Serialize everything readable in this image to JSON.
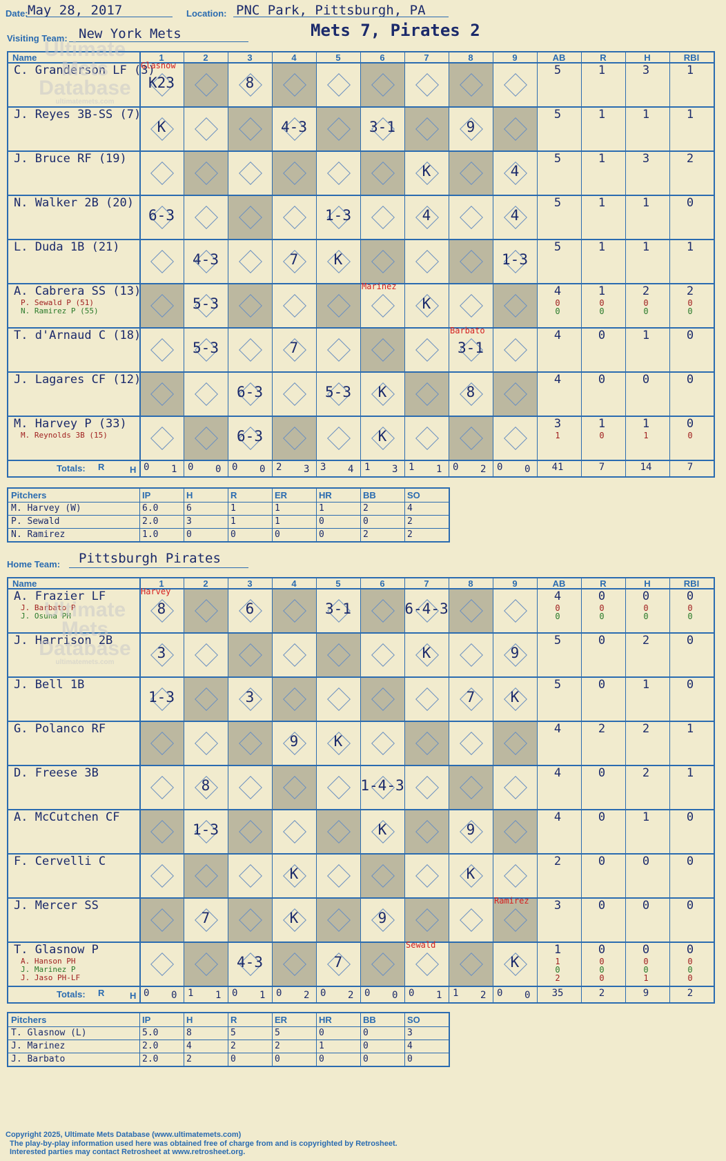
{
  "header": {
    "date_label": "Date:",
    "date": "May 28, 2017",
    "location_label": "Location:",
    "location": "PNC Park, Pittsburgh, PA",
    "visiting_label": "Visiting Team:",
    "visiting_team": "New York Mets",
    "score_title": "Mets 7, Pirates 2",
    "home_label": "Home Team:",
    "home_team": "Pittsburgh Pirates"
  },
  "columns": {
    "name": "Name",
    "innings": [
      "1",
      "2",
      "3",
      "4",
      "5",
      "6",
      "7",
      "8",
      "9"
    ],
    "stats": [
      "AB",
      "R",
      "H",
      "RBI"
    ],
    "totals_label": "Totals:",
    "r_label": "R",
    "h_label": "H"
  },
  "visitors": [
    {
      "name": "C. Granderson LF (3)",
      "subs": [],
      "stats": [
        "5",
        "1",
        "3",
        "1"
      ],
      "substats": []
    },
    {
      "name": "J. Reyes 3B-SS (7)",
      "subs": [],
      "stats": [
        "5",
        "1",
        "1",
        "1"
      ],
      "substats": []
    },
    {
      "name": "J. Bruce RF (19)",
      "subs": [],
      "stats": [
        "5",
        "1",
        "3",
        "2"
      ],
      "substats": []
    },
    {
      "name": "N. Walker 2B (20)",
      "subs": [],
      "stats": [
        "5",
        "1",
        "1",
        "0"
      ],
      "substats": []
    },
    {
      "name": "L. Duda 1B (21)",
      "subs": [],
      "stats": [
        "5",
        "1",
        "1",
        "1"
      ],
      "substats": []
    },
    {
      "name": "A. Cabrera SS (13)",
      "subs": [
        "P. Sewald P (51)",
        "N. Ramirez P (55)"
      ],
      "stats": [
        "4",
        "1",
        "2",
        "2"
      ],
      "substats": [
        [
          "0",
          "0",
          "0",
          "0"
        ],
        [
          "0",
          "0",
          "0",
          "0"
        ]
      ]
    },
    {
      "name": "T. d'Arnaud C (18)",
      "subs": [],
      "stats": [
        "4",
        "0",
        "1",
        "0"
      ],
      "substats": []
    },
    {
      "name": "J. Lagares CF (12)",
      "subs": [],
      "stats": [
        "4",
        "0",
        "0",
        "0"
      ],
      "substats": []
    },
    {
      "name": "M. Harvey P (33)",
      "subs": [
        "M. Reynolds 3B (15)"
      ],
      "stats": [
        "3",
        "1",
        "1",
        "0"
      ],
      "substats": [
        [
          "1",
          "0",
          "1",
          "0"
        ]
      ]
    }
  ],
  "visitors_plays": [
    [
      "K23",
      "",
      "8",
      "",
      "",
      "",
      "",
      "",
      ""
    ],
    [
      "K",
      "",
      "",
      "4-3",
      "",
      "3-1",
      "",
      "9",
      ""
    ],
    [
      "",
      "",
      "",
      "",
      "",
      "",
      "K",
      "",
      "4"
    ],
    [
      "6-3",
      "",
      "",
      "",
      "1-3",
      "",
      "4",
      "",
      "4"
    ],
    [
      "",
      "4-3",
      "",
      "7",
      "K",
      "",
      "",
      "",
      "1-3"
    ],
    [
      "",
      "5-3",
      "",
      "",
      "",
      "",
      "K",
      "",
      ""
    ],
    [
      "",
      "5-3",
      "",
      "7",
      "",
      "",
      "",
      "3-1",
      ""
    ],
    [
      "",
      "",
      "6-3",
      "",
      "5-3",
      "K",
      "",
      "8",
      ""
    ],
    [
      "",
      "",
      "6-3",
      "",
      "",
      "K",
      "",
      "",
      ""
    ]
  ],
  "visitors_notes": [
    {
      "text": "Glasnow",
      "row": 0,
      "col": 0
    },
    {
      "text": "Marinez",
      "row": 5,
      "col": 5
    },
    {
      "text": "Barbato",
      "row": 6,
      "col": 7
    }
  ],
  "visitors_totals": [
    [
      "0",
      "1"
    ],
    [
      "0",
      "0"
    ],
    [
      "0",
      "0"
    ],
    [
      "2",
      "3"
    ],
    [
      "3",
      "4"
    ],
    [
      "1",
      "3"
    ],
    [
      "1",
      "1"
    ],
    [
      "0",
      "2"
    ],
    [
      "0",
      "0"
    ]
  ],
  "visitors_stat_totals": [
    "41",
    "7",
    "14",
    "7"
  ],
  "visitors_pitchers": {
    "header": [
      "Pitchers",
      "IP",
      "H",
      "R",
      "ER",
      "HR",
      "BB",
      "SO"
    ],
    "rows": [
      [
        "M. Harvey (W)",
        "6.0",
        "6",
        "1",
        "1",
        "1",
        "2",
        "4"
      ],
      [
        "P. Sewald",
        "2.0",
        "3",
        "1",
        "1",
        "0",
        "0",
        "2"
      ],
      [
        "N. Ramirez",
        "1.0",
        "0",
        "0",
        "0",
        "0",
        "2",
        "2"
      ]
    ]
  },
  "home": [
    {
      "name": "A. Frazier LF",
      "subs": [
        "J. Barbato P",
        "J. Osuna PH"
      ],
      "stats": [
        "4",
        "0",
        "0",
        "0"
      ],
      "substats": [
        [
          "0",
          "0",
          "0",
          "0"
        ],
        [
          "0",
          "0",
          "0",
          "0"
        ]
      ]
    },
    {
      "name": "J. Harrison 2B",
      "subs": [],
      "stats": [
        "5",
        "0",
        "2",
        "0"
      ],
      "substats": []
    },
    {
      "name": "J. Bell 1B",
      "subs": [],
      "stats": [
        "5",
        "0",
        "1",
        "0"
      ],
      "substats": []
    },
    {
      "name": "G. Polanco RF",
      "subs": [],
      "stats": [
        "4",
        "2",
        "2",
        "1"
      ],
      "substats": []
    },
    {
      "name": "D. Freese 3B",
      "subs": [],
      "stats": [
        "4",
        "0",
        "2",
        "1"
      ],
      "substats": []
    },
    {
      "name": "A. McCutchen CF",
      "subs": [],
      "stats": [
        "4",
        "0",
        "1",
        "0"
      ],
      "substats": []
    },
    {
      "name": "F. Cervelli C",
      "subs": [],
      "stats": [
        "2",
        "0",
        "0",
        "0"
      ],
      "substats": []
    },
    {
      "name": "J. Mercer SS",
      "subs": [],
      "stats": [
        "3",
        "0",
        "0",
        "0"
      ],
      "substats": []
    },
    {
      "name": "T. Glasnow P",
      "subs": [
        "A. Hanson PH",
        "J. Marinez P",
        "J. Jaso PH-LF"
      ],
      "stats": [
        "1",
        "0",
        "0",
        "0"
      ],
      "substats": [
        [
          "1",
          "0",
          "0",
          "0"
        ],
        [
          "0",
          "0",
          "0",
          "0"
        ],
        [
          "2",
          "0",
          "1",
          "0"
        ]
      ]
    }
  ],
  "home_plays": [
    [
      "8",
      "",
      "6",
      "",
      "3-1",
      "",
      "6-4-3",
      "",
      ""
    ],
    [
      "3",
      "",
      "",
      "",
      "",
      "",
      "K",
      "",
      "9"
    ],
    [
      "1-3",
      "",
      "3",
      "",
      "",
      "",
      "",
      "7",
      "K"
    ],
    [
      "",
      "",
      "",
      "9",
      "K",
      "",
      "",
      "",
      ""
    ],
    [
      "",
      "8",
      "",
      "",
      "",
      "1-4-3",
      "",
      "",
      ""
    ],
    [
      "",
      "1-3",
      "",
      "",
      "",
      "K",
      "",
      "9",
      ""
    ],
    [
      "",
      "",
      "",
      "K",
      "",
      "",
      "",
      "K",
      ""
    ],
    [
      "",
      "7",
      "",
      "K",
      "",
      "9",
      "",
      "",
      ""
    ],
    [
      "",
      "",
      "4-3",
      "",
      "7",
      "",
      "",
      "",
      "K"
    ]
  ],
  "home_notes": [
    {
      "text": "Harvey",
      "row": 0,
      "col": 0
    },
    {
      "text": "Ramirez",
      "row": 7,
      "col": 8
    },
    {
      "text": "Sewald",
      "row": 8,
      "col": 6
    }
  ],
  "home_totals": [
    [
      "0",
      "0"
    ],
    [
      "1",
      "1"
    ],
    [
      "0",
      "1"
    ],
    [
      "0",
      "2"
    ],
    [
      "0",
      "2"
    ],
    [
      "0",
      "0"
    ],
    [
      "0",
      "1"
    ],
    [
      "1",
      "2"
    ],
    [
      "0",
      "0"
    ]
  ],
  "home_stat_totals": [
    "35",
    "2",
    "9",
    "2"
  ],
  "home_pitchers": {
    "header": [
      "Pitchers",
      "IP",
      "H",
      "R",
      "ER",
      "HR",
      "BB",
      "SO"
    ],
    "rows": [
      [
        "T. Glasnow (L)",
        "5.0",
        "8",
        "5",
        "5",
        "0",
        "0",
        "3"
      ],
      [
        "J. Marinez",
        "2.0",
        "4",
        "2",
        "2",
        "1",
        "0",
        "4"
      ],
      [
        "J. Barbato",
        "2.0",
        "2",
        "0",
        "0",
        "0",
        "0",
        "0"
      ]
    ]
  },
  "watermark": {
    "line1": "Ultimate",
    "line2": "Mets",
    "line3": "Database",
    "url": "ultimatemets.com"
  },
  "footer": {
    "line1": "Copyright 2025, Ultimate Mets Database (www.ultimatemets.com)",
    "line2": "The play-by-play information used here was obtained free of charge from and is copyrighted by Retrosheet.",
    "line3": "Interested parties may contact Retrosheet at www.retrosheet.org."
  },
  "colors": {
    "ink": "#1b2a6b",
    "grid": "#2a6bb0",
    "shade": "#bcb8a0",
    "note": "#d42020",
    "sub_red": "#a02020",
    "sub_green": "#2a7a2a",
    "bg": "#f1ebce"
  }
}
